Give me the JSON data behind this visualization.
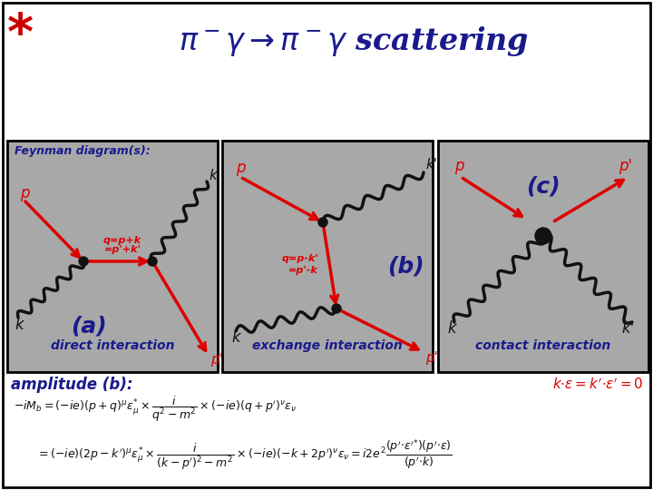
{
  "title": "$\\pi^-\\gamma \\rightarrow \\pi^-\\gamma$ scattering",
  "title_color": "#1a1a8c",
  "title_fontsize": 24,
  "star_color": "#cc0000",
  "bg_color": "#ffffff",
  "diagram_bg": "#a8a8a8",
  "label_direct": "direct interaction",
  "label_exchange": "exchange interaction",
  "label_contact": "contact interaction",
  "label_amplitude": "amplitude (b):",
  "label_a": "(a)",
  "label_b": "(b)",
  "label_c": "(c)",
  "red_color": "#dd0000",
  "dark_color": "#111111",
  "blue_label": "#1a1a8c",
  "keps_label": "$k{\\cdot}\\varepsilon = k'{\\cdot}\\varepsilon' = 0$",
  "formula1": "$-iM_b=(-ie)(p+q)^\\mu\\varepsilon_\\mu^{*}\\times\\dfrac{i}{q^2-m^2}\\times(-ie)(q+p')^\\nu\\varepsilon_\\nu$",
  "formula2": "$=(-ie)(2p-k')^\\mu\\varepsilon_\\mu^{*}\\times\\dfrac{i}{(k-p')^2-m^2}\\times(-ie)(-k+2p')^\\nu\\varepsilon_\\nu=i2e^2\\dfrac{(p'{\\cdot}\\varepsilon'^{*})(p'{\\cdot}\\varepsilon)}{(p'{\\cdot}k)}$"
}
